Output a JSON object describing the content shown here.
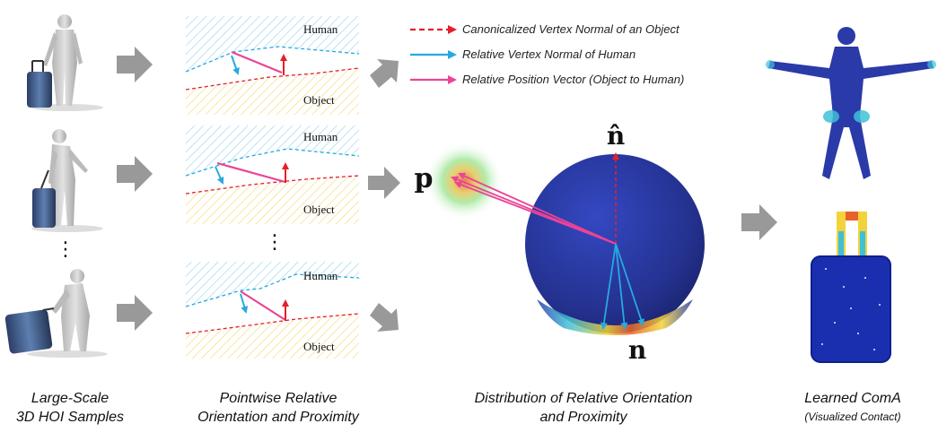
{
  "columns": {
    "samples": {
      "line1": "Large-Scale",
      "line2": "3D HOI Samples"
    },
    "pointwise": {
      "line1": "Pointwise Relative",
      "line2": "Orientation and Proximity"
    },
    "distribution": {
      "line1": "Distribution of Relative Orientation",
      "line2": "and Proximity"
    },
    "learned": {
      "line1": "Learned ComA",
      "line2": "(Visualized Contact)"
    }
  },
  "panels": {
    "human_label": "Human",
    "object_label": "Object"
  },
  "legend": [
    {
      "text": "Canonicalized Vertex Normal of an Object",
      "color": "#e4202a",
      "style": "dashed"
    },
    {
      "text": "Relative Vertex Normal of Human",
      "color": "#27a9e1",
      "style": "solid"
    },
    {
      "text": "Relative Position Vector (Object to Human)",
      "color": "#ec4397",
      "style": "solid"
    }
  ],
  "symbols": {
    "n_hat": "n̂",
    "p": "p",
    "n": "n"
  },
  "ellipsis": "⋮",
  "colors": {
    "human_hatch": "#8fd3ec",
    "object_hatch": "#f6dd7a",
    "arrow_gray": "#999999",
    "sphere": "#2a3aa8",
    "normal_red": "#e4202a",
    "normal_blue": "#27a9e1",
    "pos_pink": "#ec4397"
  }
}
